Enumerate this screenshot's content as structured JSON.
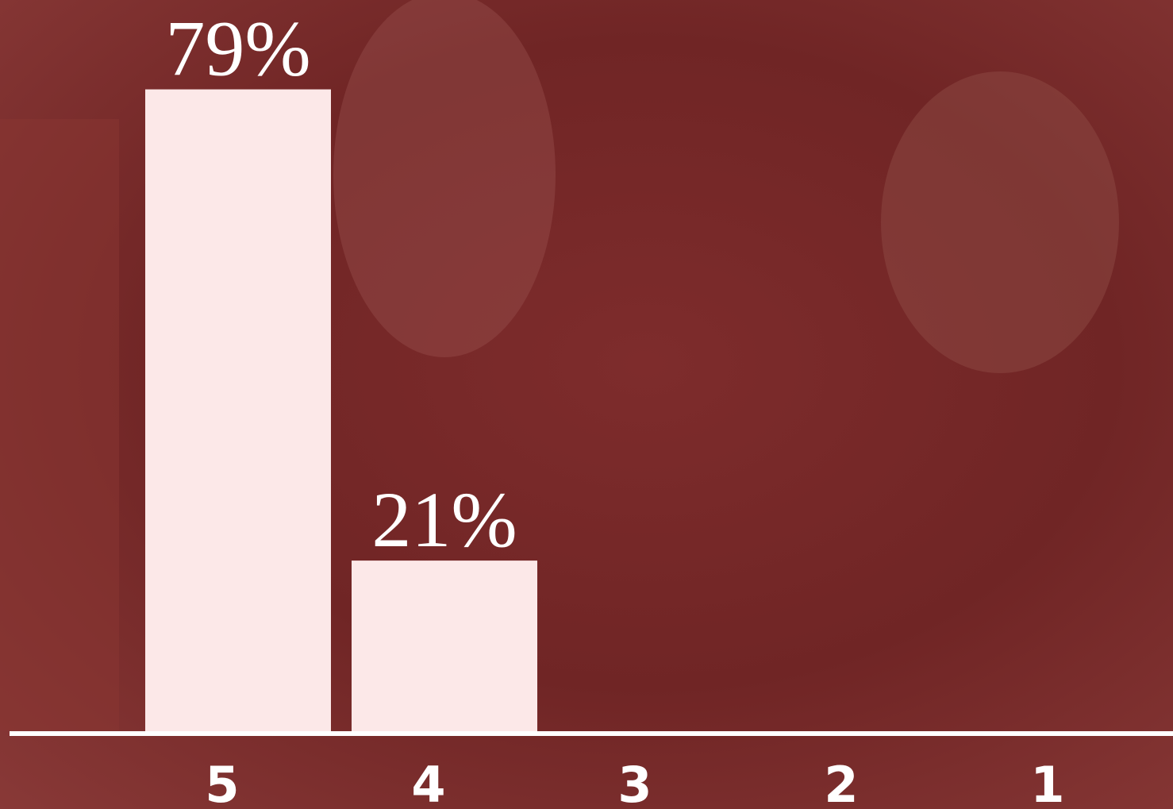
{
  "chart_data": {
    "type": "bar",
    "categories": [
      "5",
      "4",
      "3",
      "2",
      "1"
    ],
    "values": [
      79,
      21,
      0,
      0,
      0
    ],
    "value_labels": [
      "79%",
      "21%",
      null,
      null,
      null
    ],
    "color": "#fce8e8",
    "ylim": [
      0,
      90
    ]
  }
}
